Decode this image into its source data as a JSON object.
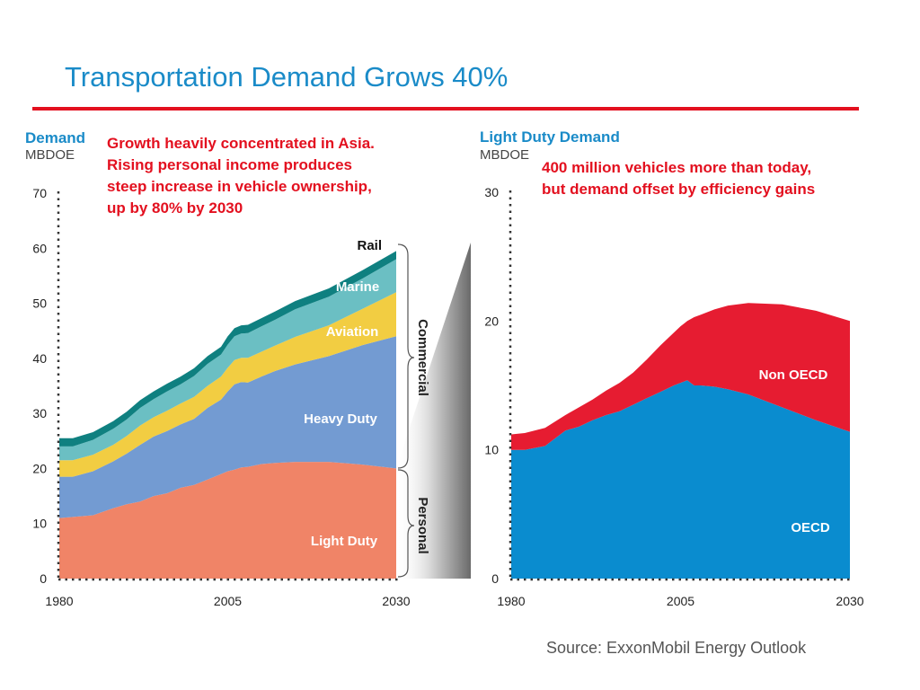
{
  "title": "Transportation Demand Grows 40%",
  "source": "Source:  ExxonMobil Energy Outlook",
  "colors": {
    "title": "#1a8bc8",
    "rule": "#e3101f",
    "light_duty": "#f08467",
    "heavy_duty": "#739bd2",
    "aviation": "#f2cd42",
    "marine": "#6bbfc3",
    "rail": "#0f8080",
    "oecd": "#0a8ccf",
    "non_oecd": "#e61c31"
  },
  "brackets": {
    "commercial": "Commercial",
    "personal": "Personal"
  },
  "chart_data": [
    {
      "type": "area",
      "stacked": true,
      "ylabel": "Demand",
      "yunit": "MBDOE",
      "annotation": "Growth heavily concentrated in Asia.\nRising personal income produces\nsteep increase in vehicle ownership,\nup by 80% by 2030",
      "ylim": [
        0,
        70
      ],
      "yticks": [
        0,
        10,
        20,
        30,
        40,
        50,
        60,
        70
      ],
      "xlim": [
        1980,
        2030
      ],
      "xticks": [
        1980,
        2005,
        2030
      ],
      "x": [
        1980,
        1982,
        1985,
        1988,
        1990,
        1992,
        1994,
        1996,
        1998,
        2000,
        2002,
        2004,
        2005,
        2006,
        2007,
        2008,
        2010,
        2012,
        2015,
        2020,
        2025,
        2030
      ],
      "series": [
        {
          "name": "Light Duty",
          "values": [
            11,
            11.2,
            11.5,
            12.8,
            13.5,
            14,
            15,
            15.5,
            16.5,
            17,
            18,
            19,
            19.5,
            19.8,
            20.2,
            20.3,
            20.8,
            21,
            21.2,
            21.2,
            20.7,
            20
          ]
        },
        {
          "name": "Heavy Duty",
          "values": [
            7.5,
            7.3,
            8,
            8.5,
            9.2,
            10.3,
            10.8,
            11.3,
            11.5,
            12,
            13,
            13.5,
            14.5,
            15.5,
            15.5,
            15.3,
            15.9,
            16.7,
            17.7,
            19.2,
            21.7,
            24
          ]
        },
        {
          "name": "Aviation",
          "values": [
            3,
            3,
            3,
            3,
            3.2,
            3.5,
            3.5,
            3.7,
            3.8,
            4,
            4,
            4.2,
            4.3,
            4.4,
            4.4,
            4.5,
            4.5,
            4.6,
            5,
            5.6,
            6.6,
            8
          ]
        },
        {
          "name": "Marine",
          "values": [
            2.5,
            2.5,
            2.7,
            2.9,
            3,
            3.2,
            3.3,
            3.5,
            3.5,
            3.8,
            4,
            4,
            4.2,
            4.3,
            4.4,
            4.5,
            4.6,
            4.7,
            5,
            5.2,
            5.5,
            6
          ]
        },
        {
          "name": "Rail",
          "values": [
            1.5,
            1.5,
            1.4,
            1.4,
            1.4,
            1.4,
            1.4,
            1.4,
            1.4,
            1.4,
            1.4,
            1.4,
            1.5,
            1.5,
            1.5,
            1.5,
            1.5,
            1.5,
            1.5,
            1.5,
            1.5,
            1.5
          ]
        }
      ]
    },
    {
      "type": "area",
      "stacked": true,
      "title": "Light Duty Demand",
      "yunit": "MBDOE",
      "annotation": "400 million vehicles more than today,\nbut demand offset by efficiency gains",
      "ylim": [
        0,
        30
      ],
      "yticks": [
        0,
        10,
        20,
        30
      ],
      "xlim": [
        1980,
        2030
      ],
      "xticks": [
        1980,
        2005,
        2030
      ],
      "x": [
        1980,
        1982,
        1985,
        1988,
        1990,
        1992,
        1994,
        1996,
        1998,
        2000,
        2002,
        2004,
        2005,
        2006,
        2007,
        2008,
        2010,
        2012,
        2015,
        2020,
        2025,
        2030
      ],
      "series": [
        {
          "name": "OECD",
          "values": [
            10,
            10,
            10.3,
            11.5,
            11.8,
            12.3,
            12.7,
            13,
            13.5,
            14,
            14.5,
            15,
            15.2,
            15.4,
            15,
            15,
            14.9,
            14.7,
            14.3,
            13.3,
            12.3,
            11.4
          ]
        },
        {
          "name": "Non OECD",
          "values": [
            1.2,
            1.3,
            1.4,
            1.2,
            1.5,
            1.6,
            1.9,
            2.2,
            2.5,
            3,
            3.6,
            4.1,
            4.4,
            4.6,
            5.3,
            5.5,
            6,
            6.5,
            7.1,
            8,
            8.5,
            8.6
          ]
        }
      ]
    }
  ]
}
